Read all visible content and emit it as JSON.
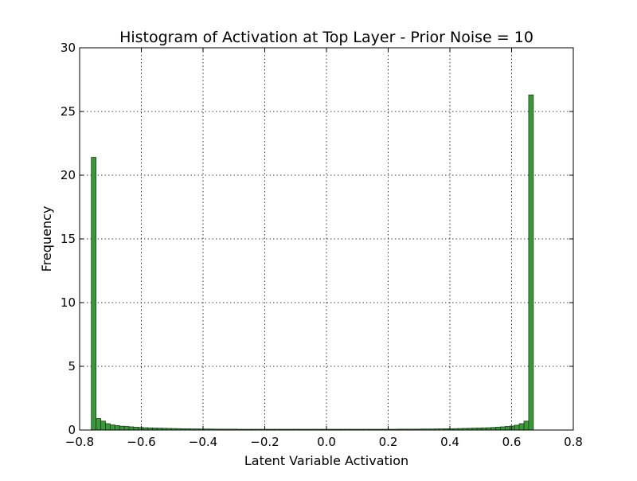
{
  "chart_data": {
    "type": "bar",
    "title": "Histogram of Activation at Top Layer - Prior Noise = 10",
    "xlabel": "Latent Variable Activation",
    "ylabel": "Frequency",
    "xlim": [
      -0.8,
      0.8
    ],
    "ylim": [
      0,
      30
    ],
    "xticks": [
      -0.8,
      -0.6,
      -0.4,
      -0.2,
      0.0,
      0.2,
      0.4,
      0.6,
      0.8
    ],
    "xtick_labels": [
      "−0.8",
      "−0.6",
      "−0.4",
      "−0.2",
      "0.0",
      "0.2",
      "0.4",
      "0.6",
      "0.8"
    ],
    "yticks": [
      0,
      5,
      10,
      15,
      20,
      25,
      30
    ],
    "ytick_labels": [
      "0",
      "5",
      "10",
      "15",
      "20",
      "25",
      "30"
    ],
    "grid": true,
    "bar_color": "#3a9a3a",
    "bin_start": -0.762,
    "bin_width": 0.01524,
    "values": [
      21.4,
      0.9,
      0.7,
      0.5,
      0.4,
      0.35,
      0.3,
      0.28,
      0.25,
      0.22,
      0.2,
      0.18,
      0.17,
      0.16,
      0.15,
      0.14,
      0.13,
      0.12,
      0.11,
      0.1,
      0.1,
      0.09,
      0.09,
      0.08,
      0.08,
      0.08,
      0.07,
      0.07,
      0.07,
      0.07,
      0.07,
      0.06,
      0.06,
      0.06,
      0.06,
      0.06,
      0.06,
      0.06,
      0.06,
      0.06,
      0.06,
      0.06,
      0.06,
      0.06,
      0.06,
      0.06,
      0.06,
      0.06,
      0.06,
      0.06,
      0.06,
      0.06,
      0.06,
      0.06,
      0.06,
      0.06,
      0.06,
      0.06,
      0.06,
      0.06,
      0.06,
      0.06,
      0.06,
      0.06,
      0.06,
      0.07,
      0.07,
      0.07,
      0.07,
      0.07,
      0.08,
      0.08,
      0.08,
      0.09,
      0.09,
      0.1,
      0.1,
      0.11,
      0.12,
      0.13,
      0.14,
      0.15,
      0.16,
      0.17,
      0.18,
      0.2,
      0.22,
      0.25,
      0.28,
      0.32,
      0.38,
      0.5,
      0.7,
      26.3
    ]
  }
}
